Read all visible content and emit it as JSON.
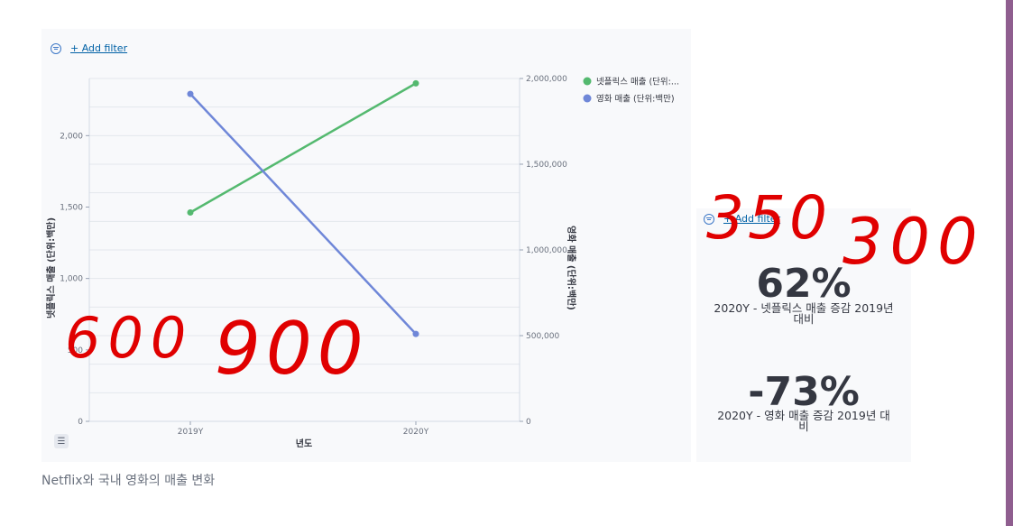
{
  "filter": {
    "add_label": "+ Add filter",
    "icon": "filter-icon"
  },
  "caption": "Netflix와 국내 영화의 매출 변화",
  "metrics": [
    {
      "value": "62%",
      "label": "2020Y - 넷플릭스 매출 증감 2019년 대비"
    },
    {
      "value": "-73%",
      "label": "2020Y - 영화 매출 증감 2019년 대비"
    }
  ],
  "annotations": [
    "600",
    "900",
    "350",
    "300"
  ],
  "colors": {
    "netflix": "#54b96f",
    "movie": "#6f87d8",
    "annotation": "#e00000",
    "accent": "#0061a6"
  },
  "chart_data": {
    "type": "line",
    "categories": [
      "2019Y",
      "2020Y"
    ],
    "xlabel": "년도",
    "y_left": {
      "label": "넷플릭스 매출 (단위:백만)",
      "ticks": [
        0,
        500,
        1000,
        1500,
        2000
      ],
      "tick_labels": [
        "0",
        "500",
        "1,000",
        "1,500",
        "2,000"
      ],
      "range": [
        0,
        2400
      ]
    },
    "y_right": {
      "label": "영화 매출 (단위:백만)",
      "ticks": [
        0,
        500000,
        1000000,
        1500000,
        2000000
      ],
      "tick_labels": [
        "0",
        "500,000",
        "1,000,000",
        "1,500,000",
        "2,000,000"
      ],
      "range": [
        0,
        2000000
      ]
    },
    "series": [
      {
        "name": "넷플릭스 매출 (단위:...",
        "axis": "left",
        "values": [
          1462,
          2366
        ],
        "color": "#54b96f"
      },
      {
        "name": "영화 매출 (단위:백만)",
        "axis": "right",
        "values": [
          1910000,
          510000
        ],
        "color": "#6f87d8"
      }
    ],
    "legend": "top-right",
    "grid": true
  }
}
